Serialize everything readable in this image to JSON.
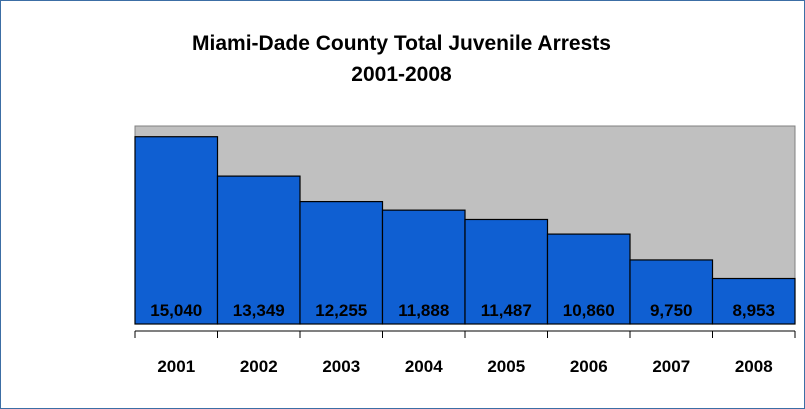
{
  "chart_data": {
    "type": "bar",
    "title": [
      "Miami-Dade County Total Juvenile Arrests",
      "2001-2008"
    ],
    "categories": [
      "2001",
      "2002",
      "2003",
      "2004",
      "2005",
      "2006",
      "2007",
      "2008"
    ],
    "values": [
      15040,
      13349,
      12255,
      11888,
      11487,
      10860,
      9750,
      8953
    ],
    "value_labels": [
      "15,040",
      "13,349",
      "12,255",
      "11,888",
      "11,487",
      "10,860",
      "9,750",
      "8,953"
    ],
    "ylim": [
      7000,
      15500
    ],
    "grid": false,
    "legend": "none",
    "colors": {
      "bar_fill": "#0f5fd2",
      "bar_stroke": "#000000",
      "plot_background": "#c0c0c0",
      "frame_border": "#3c6ea5",
      "outer_background": "#cfe0f3"
    }
  }
}
